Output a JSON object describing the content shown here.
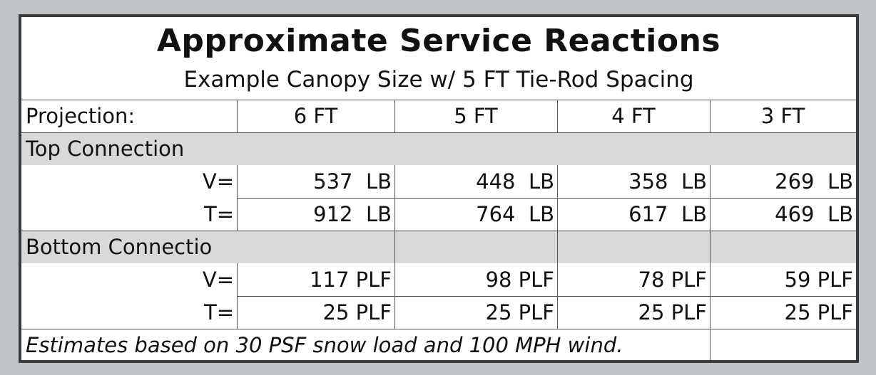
{
  "title": "Approximate Service Reactions",
  "subtitle": "Example Canopy Size w/ 5 FT Tie-Rod Spacing",
  "header": {
    "label": "Projection:",
    "columns": [
      "6 FT",
      "5 FT",
      "4 FT",
      "3 FT"
    ]
  },
  "sections": [
    {
      "name": "Top Connection",
      "rows": [
        {
          "label": "V=",
          "values": [
            "537  LB",
            "448  LB",
            "358  LB",
            "269  LB"
          ]
        },
        {
          "label": "T=",
          "values": [
            "912  LB",
            "764  LB",
            "617  LB",
            "469  LB"
          ]
        }
      ]
    },
    {
      "name": "Bottom Connectio",
      "rows": [
        {
          "label": "V=",
          "values": [
            "117 PLF",
            "98 PLF",
            "78 PLF",
            "59 PLF"
          ]
        },
        {
          "label": "T=",
          "values": [
            "25 PLF",
            "25 PLF",
            "25 PLF",
            "25 PLF"
          ]
        }
      ]
    }
  ],
  "footnote": "Estimates based on 30 PSF snow load and 100 MPH wind."
}
